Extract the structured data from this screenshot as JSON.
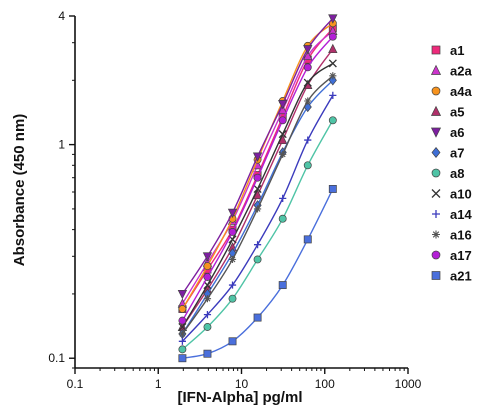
{
  "chart_data": {
    "type": "scatter",
    "xlabel": "[IFN-Alpha] pg/ml",
    "ylabel": "Absorbance (450 nm)",
    "xscale": "log",
    "yscale": "log",
    "xlim": [
      0.1,
      1000
    ],
    "ylim": [
      0.09,
      4
    ],
    "xticks": [
      0.1,
      1,
      10,
      100,
      1000
    ],
    "xtick_labels": [
      "0.1",
      "1",
      "10",
      "100",
      "1000"
    ],
    "yticks": [
      0.1,
      1,
      4
    ],
    "ytick_labels": [
      "0.1",
      "1",
      "4"
    ],
    "grid": false,
    "legend_position": "right",
    "x": [
      1.95,
      3.9,
      7.8,
      15.6,
      31.25,
      62.5,
      125
    ],
    "series": [
      {
        "name": "a1",
        "color": "#ee2a7b",
        "marker": "square",
        "values": [
          0.17,
          0.26,
          0.4,
          0.72,
          1.35,
          2.5,
          3.5
        ]
      },
      {
        "name": "a2a",
        "color": "#cc33cc",
        "marker": "triangle-up",
        "values": [
          0.18,
          0.28,
          0.44,
          0.8,
          1.45,
          2.6,
          3.4
        ]
      },
      {
        "name": "a4a",
        "color": "#f7931e",
        "marker": "circle",
        "values": [
          0.17,
          0.27,
          0.45,
          0.85,
          1.6,
          2.9,
          3.7
        ]
      },
      {
        "name": "a5",
        "color": "#b0306a",
        "marker": "triangle-up",
        "values": [
          0.14,
          0.21,
          0.33,
          0.58,
          1.05,
          1.9,
          2.8
        ]
      },
      {
        "name": "a6",
        "color": "#7d1fa0",
        "marker": "triangle-down",
        "values": [
          0.2,
          0.3,
          0.48,
          0.88,
          1.55,
          2.8,
          3.9
        ]
      },
      {
        "name": "a7",
        "color": "#3f6fd6",
        "marker": "diamond",
        "values": [
          0.13,
          0.2,
          0.31,
          0.52,
          0.92,
          1.5,
          2.0
        ]
      },
      {
        "name": "a8",
        "color": "#4fc4a6",
        "marker": "circle",
        "values": [
          0.11,
          0.14,
          0.19,
          0.29,
          0.45,
          0.8,
          1.3
        ]
      },
      {
        "name": "a10",
        "color": "#333333",
        "marker": "x",
        "values": [
          0.14,
          0.22,
          0.36,
          0.62,
          1.12,
          1.95,
          2.4
        ]
      },
      {
        "name": "a14",
        "color": "#3b3bbd",
        "marker": "plus",
        "values": [
          0.12,
          0.16,
          0.22,
          0.34,
          0.56,
          1.05,
          1.7
        ]
      },
      {
        "name": "a16",
        "color": "#555555",
        "marker": "asterisk",
        "values": [
          0.13,
          0.19,
          0.29,
          0.5,
          0.9,
          1.6,
          2.1
        ]
      },
      {
        "name": "a17",
        "color": "#b31fd6",
        "marker": "circle",
        "values": [
          0.15,
          0.24,
          0.39,
          0.7,
          1.3,
          2.3,
          3.2
        ]
      },
      {
        "name": "a21",
        "color": "#4a6fdc",
        "marker": "square",
        "values": [
          0.1,
          0.105,
          0.12,
          0.155,
          0.22,
          0.36,
          0.62
        ]
      }
    ]
  }
}
